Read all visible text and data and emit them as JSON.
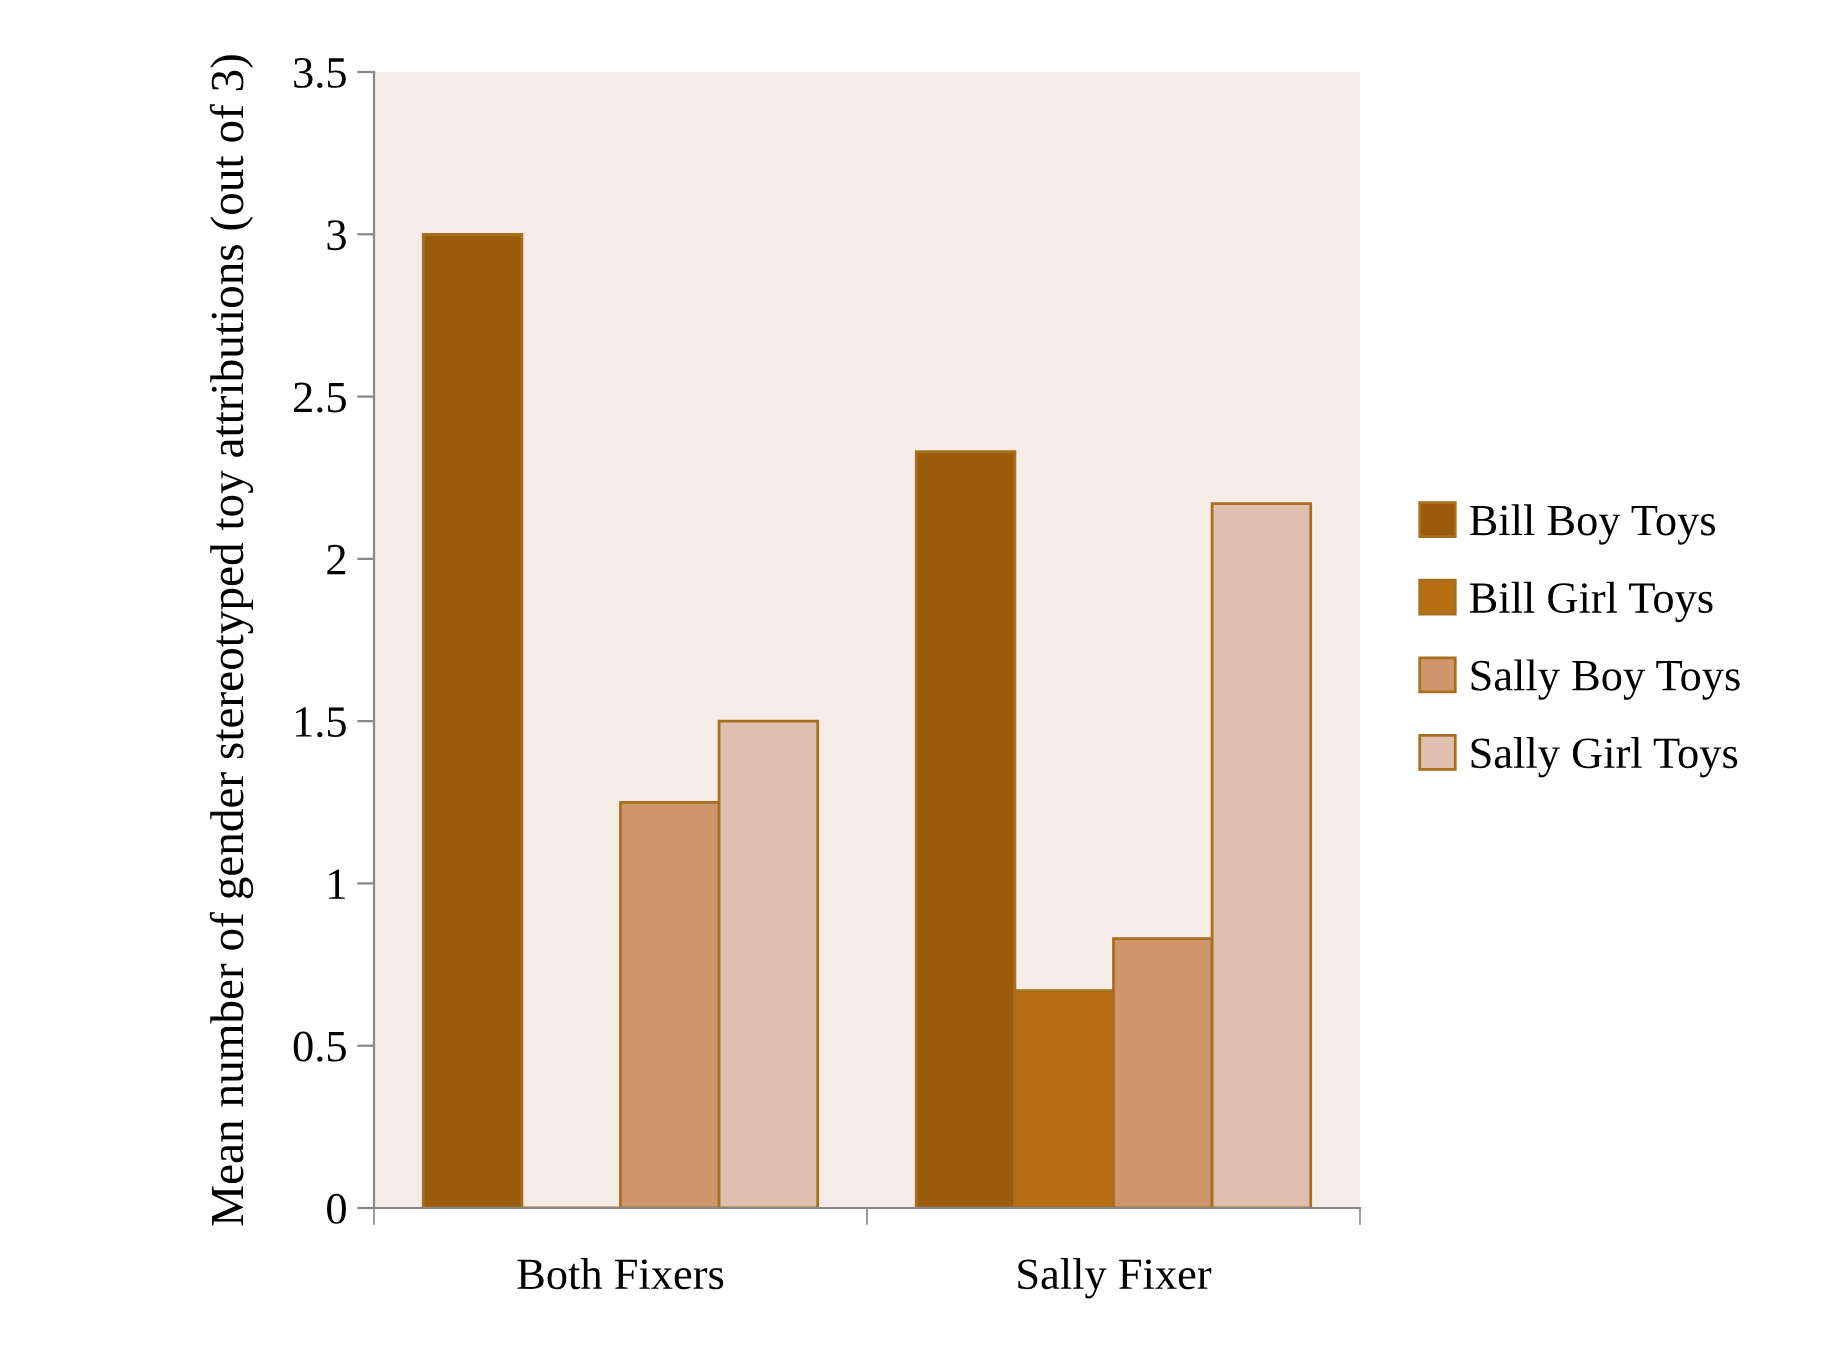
{
  "chart_data": {
    "type": "bar",
    "ylabel": "Mean number of gender stereotyped toy attributions (out of 3)",
    "categories": [
      "Both Fixers",
      "Sally Fixer"
    ],
    "series": [
      {
        "name": "Bill Boy Toys",
        "color": "#9a5b0a",
        "values": [
          3,
          2.33
        ]
      },
      {
        "name": "Bill Girl Toys",
        "color": "#b66f12",
        "values": [
          0,
          0.67
        ]
      },
      {
        "name": "Sally Boy Toys",
        "color": "#cf966c",
        "values": [
          1.25,
          0.83
        ]
      },
      {
        "name": "Sally Girl Toys",
        "color": "#dfbfb0",
        "values": [
          1.5,
          2.17
        ]
      }
    ],
    "ylim": [
      0,
      3.5
    ],
    "yticks": [
      0,
      0.5,
      1,
      1.5,
      2,
      2.5,
      3,
      3.5
    ],
    "grid": false,
    "legend": "right"
  }
}
